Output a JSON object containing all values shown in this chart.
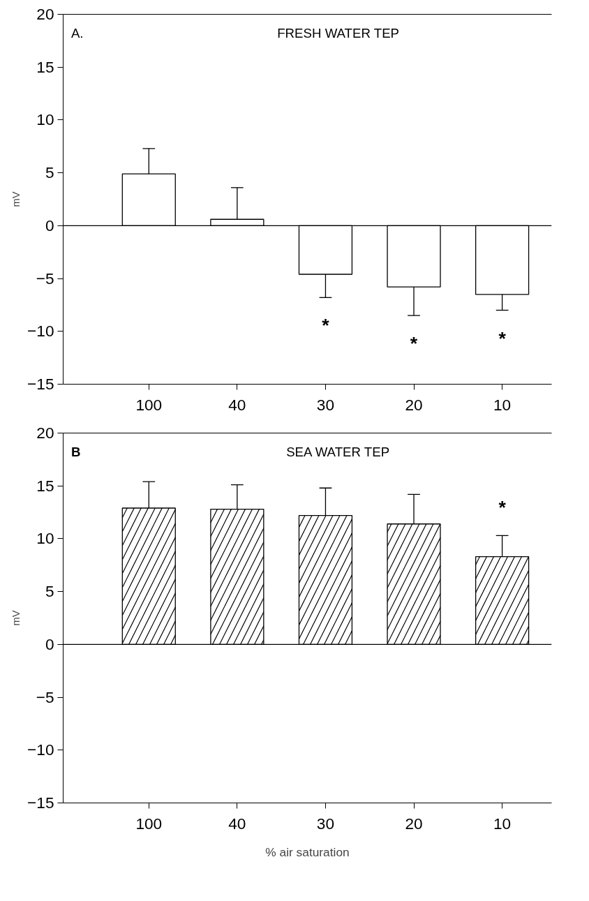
{
  "chart_data": [
    {
      "type": "bar",
      "title": "FRESH WATER TEP",
      "ylabel": "mV",
      "categories": [
        "100",
        "40",
        "30",
        "20",
        "10"
      ],
      "values": [
        4.9,
        0.6,
        -4.6,
        -5.8,
        -6.5
      ],
      "errors": [
        [
          4.9,
          7.3
        ],
        [
          0.6,
          3.6
        ],
        [
          -6.8,
          -4.6
        ],
        [
          -8.5,
          -5.8
        ],
        [
          -8.0,
          -6.5
        ]
      ],
      "color": "#ffffff",
      "ylim": [
        -15,
        20
      ],
      "yticks": [
        -15,
        -10,
        -5,
        0,
        5,
        10,
        15,
        20
      ],
      "ref_lines": [
        {
          "axis": "y",
          "value": 0,
          "label": null
        }
      ],
      "annotations": [
        "A.",
        {
          "text": "*",
          "x": "30",
          "y": -6.8
        },
        {
          "text": "*",
          "x": "20",
          "y": -8.5
        },
        {
          "text": "*",
          "x": "10",
          "y": -8.0
        }
      ]
    },
    {
      "type": "bar",
      "title": "SEA WATER TEP",
      "ylabel": "mV",
      "xlabel": "% air saturation",
      "categories": [
        "100",
        "40",
        "30",
        "20",
        "10"
      ],
      "values": [
        12.9,
        12.8,
        12.2,
        11.4,
        8.3
      ],
      "errors": [
        [
          12.9,
          15.4
        ],
        [
          12.8,
          15.1
        ],
        [
          12.2,
          14.8
        ],
        [
          11.4,
          14.2
        ],
        [
          8.3,
          10.3
        ]
      ],
      "color": "#ffffff",
      "ylim": [
        -15,
        20
      ],
      "yticks": [
        -15,
        -10,
        -5,
        0,
        5,
        10,
        15,
        20
      ],
      "ref_lines": [
        {
          "axis": "y",
          "value": 0,
          "label": null
        }
      ],
      "annotations": [
        "B",
        {
          "text": "*",
          "x": "10",
          "y": 10.3
        }
      ]
    }
  ]
}
